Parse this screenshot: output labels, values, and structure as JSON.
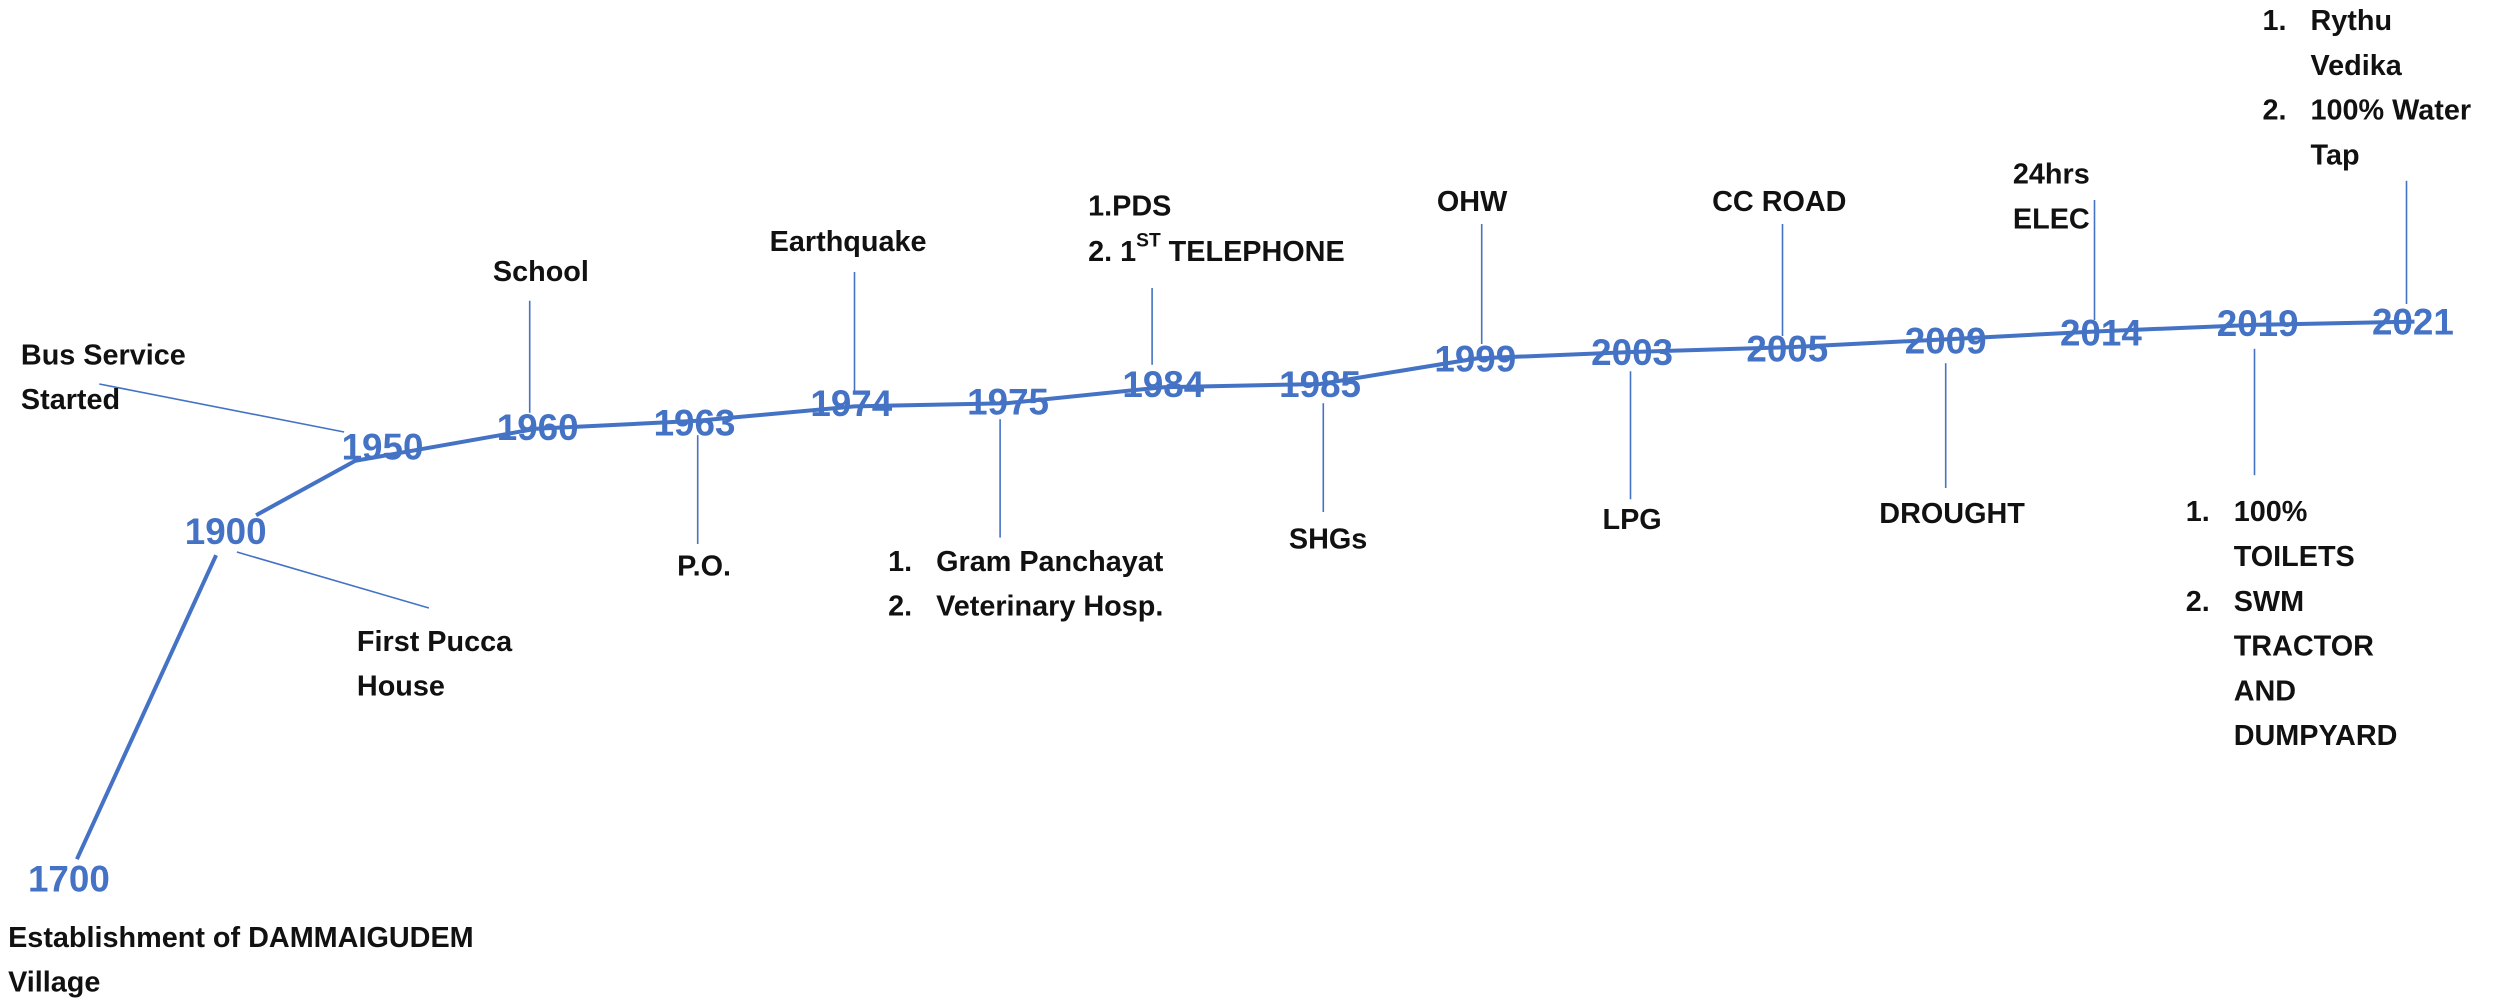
{
  "events": [
    {
      "year": "1700",
      "lines": [
        "Establishment of DAMMAIGUDEM",
        "Village"
      ]
    },
    {
      "year": "1900",
      "lines": [
        "First Pucca",
        "House"
      ]
    },
    {
      "year": "1950",
      "lines": [
        "Bus Service",
        "Started"
      ]
    },
    {
      "year": "1960",
      "lines": [
        "School"
      ]
    },
    {
      "year": "1963",
      "lines": [
        "P.O."
      ]
    },
    {
      "year": "1974",
      "lines": [
        "Earthquake"
      ]
    },
    {
      "year": "1975",
      "items": [
        {
          "number": "1.",
          "lines": [
            "Gram Panchayat"
          ]
        },
        {
          "number": "2.",
          "lines": [
            "Veterinary Hosp."
          ]
        }
      ]
    },
    {
      "year": "1984",
      "lines": [
        "1.PDS",
        {
          "text": "2. 1",
          "sup": "ST",
          "rest": " TELEPHONE"
        }
      ]
    },
    {
      "year": "1985",
      "lines": [
        "SHGs"
      ]
    },
    {
      "year": "1999",
      "lines": [
        "OHW"
      ]
    },
    {
      "year": "2003",
      "lines": [
        "LPG"
      ]
    },
    {
      "year": "2005",
      "lines": [
        "CC ROAD"
      ]
    },
    {
      "year": "2009",
      "lines": [
        "DROUGHT"
      ]
    },
    {
      "year": "2014",
      "lines": [
        "24hrs",
        "ELEC"
      ]
    },
    {
      "year": "2019",
      "items": [
        {
          "number": "1.",
          "lines": [
            "100%",
            "TOILETS"
          ]
        },
        {
          "number": "2.",
          "lines": [
            "SWM",
            "TRACTOR",
            "AND",
            "DUMPYARD"
          ]
        }
      ]
    },
    {
      "year": "2021",
      "items": [
        {
          "number": "1.",
          "lines": [
            "Rythu",
            "Vedika"
          ]
        },
        {
          "number": "2.",
          "lines": [
            "100% Water",
            "Tap"
          ]
        }
      ]
    }
  ]
}
